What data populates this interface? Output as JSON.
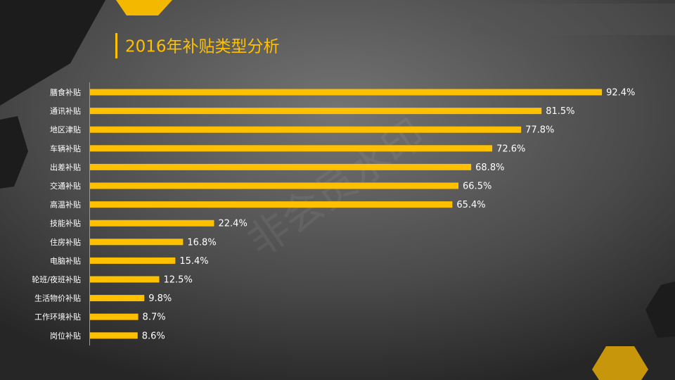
{
  "chart_data": {
    "type": "bar",
    "orientation": "horizontal",
    "title": "2016年补贴类型分析",
    "watermark": "非会员水印",
    "categories": [
      "膳食补贴",
      "通讯补贴",
      "地区津贴",
      "车辆补贴",
      "出差补贴",
      "交通补贴",
      "高温补贴",
      "技能补贴",
      "住房补贴",
      "电脑补贴",
      "轮班/夜班补贴",
      "生活物价补贴",
      "工作环境补贴",
      "岗位补贴"
    ],
    "values": [
      92.4,
      81.5,
      77.8,
      72.6,
      68.8,
      66.5,
      65.4,
      22.4,
      16.8,
      15.4,
      12.5,
      9.8,
      8.7,
      8.6
    ],
    "value_labels": [
      "92.4%",
      "81.5%",
      "77.8%",
      "72.6%",
      "68.8%",
      "66.5%",
      "65.4%",
      "22.4%",
      "16.8%",
      "15.4%",
      "12.5%",
      "9.8%",
      "8.7%",
      "8.6%"
    ],
    "color": "#ffc000"
  }
}
